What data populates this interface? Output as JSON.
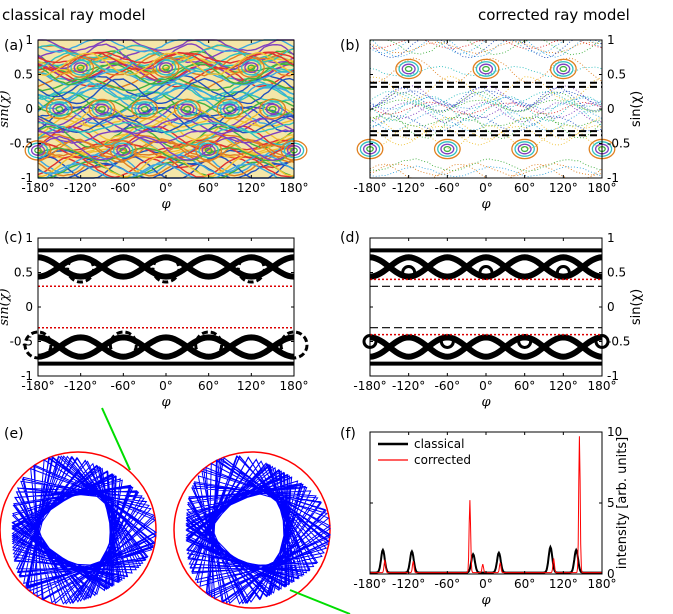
{
  "headers": {
    "left": "classical ray model",
    "right": "corrected ray model"
  },
  "panel_labels": [
    "(a)",
    "(b)",
    "(c)",
    "(d)",
    "(e)",
    "(f)"
  ],
  "colors": {
    "black": "#000000",
    "red": "#ff0000",
    "blue": "#0000ff",
    "green": "#00dd00",
    "gray": "#999999",
    "dotted_red": "#dd0000",
    "poincare": [
      "#3aa7e0",
      "#e03030",
      "#f0c030",
      "#40b040",
      "#8040c0",
      "#30c0c0",
      "#e08020",
      "#2050c0"
    ]
  },
  "chart_data": [
    {
      "panel": "(a)",
      "type": "scatter",
      "description_series": "chaotic Poincare section",
      "xlabel": "φ",
      "ylabel": "sin(χ)",
      "xlim": [
        -180,
        180
      ],
      "ylim": [
        -1,
        1
      ],
      "xticks": [
        "-180°",
        "-120°",
        "-60°",
        "0°",
        "60°",
        "120°",
        "180°"
      ],
      "yticks": [
        "-1",
        "-0.5",
        "0",
        "0.5",
        "1"
      ],
      "yaxis_side": "left",
      "islands": [
        {
          "phi": -120,
          "s": 0.6
        },
        {
          "phi": 0,
          "s": 0.6
        },
        {
          "phi": 120,
          "s": 0.6
        },
        {
          "phi": -60,
          "s": -0.6
        },
        {
          "phi": 60,
          "s": -0.6
        },
        {
          "phi": 180,
          "s": -0.6
        },
        {
          "phi": -180,
          "s": -0.6
        },
        {
          "phi": -150,
          "s": 0.0
        },
        {
          "phi": -90,
          "s": 0.0
        },
        {
          "phi": -30,
          "s": 0.0
        },
        {
          "phi": 30,
          "s": 0.0
        },
        {
          "phi": 90,
          "s": 0.0
        },
        {
          "phi": 150,
          "s": 0.0
        }
      ]
    },
    {
      "panel": "(b)",
      "type": "scatter",
      "xlabel": "φ",
      "ylabel": "sin(χ)",
      "xlim": [
        -180,
        180
      ],
      "ylim": [
        -1,
        1
      ],
      "xticks": [
        "-180°",
        "-120°",
        "-60°",
        "0°",
        "60°",
        "120°",
        "180°"
      ],
      "yticks": [
        "-1",
        "-0.5",
        "0",
        "0.5",
        "1"
      ],
      "yaxis_side": "right",
      "dashed_lines_y": [
        0.38,
        0.32,
        -0.32,
        -0.38
      ],
      "islands": [
        {
          "phi": -120,
          "s": 0.58
        },
        {
          "phi": 0,
          "s": 0.58
        },
        {
          "phi": 120,
          "s": 0.58
        },
        {
          "phi": -60,
          "s": -0.58
        },
        {
          "phi": 60,
          "s": -0.58
        },
        {
          "phi": 180,
          "s": -0.58
        },
        {
          "phi": -180,
          "s": -0.58
        }
      ]
    },
    {
      "panel": "(c)",
      "type": "scatter",
      "xlabel": "φ",
      "ylabel": "sin(χ)",
      "xlim": [
        -180,
        180
      ],
      "ylim": [
        -1,
        1
      ],
      "xticks": [
        "-180°",
        "-120°",
        "-60°",
        "0°",
        "60°",
        "120°",
        "180°"
      ],
      "yticks": [
        "-1",
        "-0.5",
        "0",
        "0.5",
        "1"
      ],
      "yaxis_side": "left",
      "dotted_lines_y": [
        0.3,
        -0.3
      ],
      "islands": [
        {
          "phi": -120,
          "s": 0.55
        },
        {
          "phi": 0,
          "s": 0.55
        },
        {
          "phi": 120,
          "s": 0.55
        },
        {
          "phi": -60,
          "s": -0.55
        },
        {
          "phi": 60,
          "s": -0.55
        },
        {
          "phi": 180,
          "s": -0.55
        },
        {
          "phi": -180,
          "s": -0.55
        }
      ]
    },
    {
      "panel": "(d)",
      "type": "scatter",
      "xlabel": "φ",
      "ylabel": "sin(χ)",
      "xlim": [
        -180,
        180
      ],
      "ylim": [
        -1,
        1
      ],
      "xticks": [
        "-180°",
        "-120°",
        "-60°",
        "0°",
        "60°",
        "120°",
        "180°"
      ],
      "yticks": [
        "-1",
        "-0.5",
        "0",
        "0.5",
        "1"
      ],
      "yaxis_side": "right",
      "dotted_lines_y": [
        0.4,
        -0.4
      ],
      "dashed_lines_y": [
        0.3,
        -0.3
      ],
      "islands": [
        {
          "phi": -120,
          "s": 0.5
        },
        {
          "phi": 0,
          "s": 0.5
        },
        {
          "phi": 120,
          "s": 0.5
        },
        {
          "phi": -60,
          "s": -0.5
        },
        {
          "phi": 60,
          "s": -0.5
        },
        {
          "phi": 180,
          "s": -0.5
        },
        {
          "phi": -180,
          "s": -0.5
        }
      ]
    },
    {
      "panel": "(f)",
      "type": "line",
      "xlabel": "φ",
      "ylabel": "intensity [arb. units]",
      "xlim": [
        -180,
        180
      ],
      "ylim": [
        0,
        10
      ],
      "xticks": [
        "-180°",
        "-120°",
        "-60°",
        "0°",
        "60°",
        "120°",
        "180°"
      ],
      "yticks": [
        "0",
        "5",
        "10"
      ],
      "yaxis_side": "right",
      "series": [
        {
          "name": "classical",
          "color": "#000000",
          "peaks": [
            [
              -160,
              1.6
            ],
            [
              -115,
              1.5
            ],
            [
              -20,
              1.3
            ],
            [
              20,
              1.4
            ],
            [
              100,
              1.8
            ],
            [
              140,
              1.6
            ]
          ]
        },
        {
          "name": "corrected",
          "color": "#ff0000",
          "peaks": [
            [
              -157,
              0.9
            ],
            [
              -113,
              0.8
            ],
            [
              -25,
              5.1
            ],
            [
              -5,
              0.6
            ],
            [
              22,
              0.7
            ],
            [
              105,
              1.0
            ],
            [
              145,
              9.6
            ]
          ]
        }
      ]
    }
  ]
}
